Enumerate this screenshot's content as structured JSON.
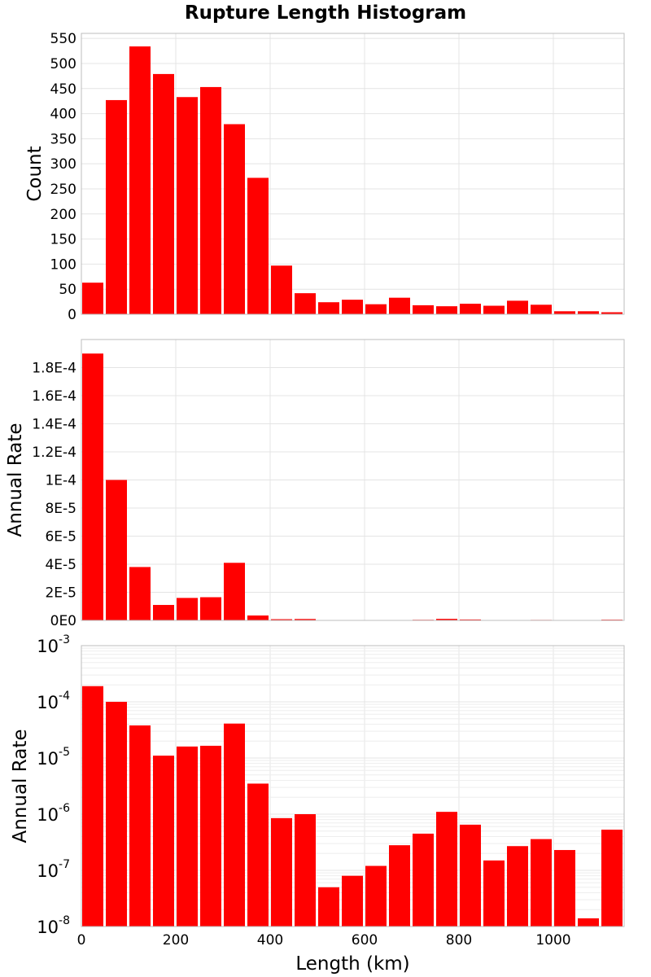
{
  "title": "Rupture Length Histogram",
  "colors": {
    "bar": "#ff0000",
    "grid": "#e4e4e4",
    "frame": "#bdbdbd",
    "text": "#000000"
  },
  "chart_data": [
    {
      "name": "count",
      "type": "bar",
      "ylabel": "Count",
      "xlabel": "",
      "xlim": [
        0,
        1150
      ],
      "ylim": [
        0,
        560
      ],
      "bin_width": 50,
      "bin_starts": [
        0,
        50,
        100,
        150,
        200,
        250,
        300,
        350,
        400,
        450,
        500,
        550,
        600,
        650,
        700,
        750,
        800,
        850,
        900,
        950,
        1000,
        1050,
        1100
      ],
      "values": [
        63,
        427,
        534,
        479,
        433,
        453,
        379,
        272,
        97,
        42,
        24,
        29,
        20,
        33,
        18,
        16,
        21,
        17,
        27,
        19,
        6,
        6,
        4
      ],
      "yticks": [
        0,
        50,
        100,
        150,
        200,
        250,
        300,
        350,
        400,
        450,
        500,
        550
      ],
      "ytick_labels": [
        "0",
        "50",
        "100",
        "150",
        "200",
        "250",
        "300",
        "350",
        "400",
        "450",
        "500",
        "550"
      ],
      "xticks": [
        0,
        200,
        400,
        600,
        800,
        1000
      ],
      "grid": true
    },
    {
      "name": "rate-linear",
      "type": "bar",
      "ylabel": "Annual Rate",
      "xlabel": "",
      "xlim": [
        0,
        1150
      ],
      "ylim": [
        0,
        0.0002
      ],
      "bin_width": 50,
      "bin_starts": [
        0,
        50,
        100,
        150,
        200,
        250,
        300,
        350,
        400,
        450,
        500,
        550,
        600,
        650,
        700,
        750,
        800,
        850,
        900,
        950,
        1000,
        1050,
        1100
      ],
      "values": [
        0.00019,
        0.0001,
        3.8e-05,
        1.1e-05,
        1.6e-05,
        1.65e-05,
        4.1e-05,
        3.5e-06,
        8.5e-07,
        1e-06,
        5e-08,
        8e-08,
        1.2e-07,
        2.8e-07,
        4.5e-07,
        1.1e-06,
        6.5e-07,
        1.5e-07,
        2.7e-07,
        3.6e-07,
        2.3e-07,
        1.4e-08,
        5.3e-07
      ],
      "yticks": [
        0,
        2e-05,
        4e-05,
        6e-05,
        8e-05,
        0.0001,
        0.00012,
        0.00014,
        0.00016,
        0.00018
      ],
      "ytick_labels": [
        "0E0",
        "2E-5",
        "4E-5",
        "6E-5",
        "8E-5",
        "1E-4",
        "1.2E-4",
        "1.4E-4",
        "1.6E-4",
        "1.8E-4"
      ],
      "xticks": [
        0,
        200,
        400,
        600,
        800,
        1000
      ],
      "grid": true
    },
    {
      "name": "rate-log",
      "type": "bar",
      "yscale": "log",
      "ylabel": "Annual Rate",
      "xlabel": "Length (km)",
      "xlim": [
        0,
        1150
      ],
      "ylim": [
        1e-08,
        0.001
      ],
      "bin_width": 50,
      "bin_starts": [
        0,
        50,
        100,
        150,
        200,
        250,
        300,
        350,
        400,
        450,
        500,
        550,
        600,
        650,
        700,
        750,
        800,
        850,
        900,
        950,
        1000,
        1050,
        1100
      ],
      "values": [
        0.00019,
        0.0001,
        3.8e-05,
        1.1e-05,
        1.6e-05,
        1.65e-05,
        4.1e-05,
        3.5e-06,
        8.5e-07,
        1e-06,
        5e-08,
        8e-08,
        1.2e-07,
        2.8e-07,
        4.5e-07,
        1.1e-06,
        6.5e-07,
        1.5e-07,
        2.7e-07,
        3.6e-07,
        2.3e-07,
        1.4e-08,
        5.3e-07
      ],
      "ytick_exponents": [
        -8,
        -7,
        -6,
        -5,
        -4,
        -3
      ],
      "ytick_base": "10",
      "ytick_sups": [
        "-8",
        "-7",
        "-6",
        "-5",
        "-4",
        "-3"
      ],
      "xticks": [
        0,
        200,
        400,
        600,
        800,
        1000
      ],
      "xtick_labels": [
        "0",
        "200",
        "400",
        "600",
        "800",
        "1000"
      ],
      "grid": true
    }
  ]
}
